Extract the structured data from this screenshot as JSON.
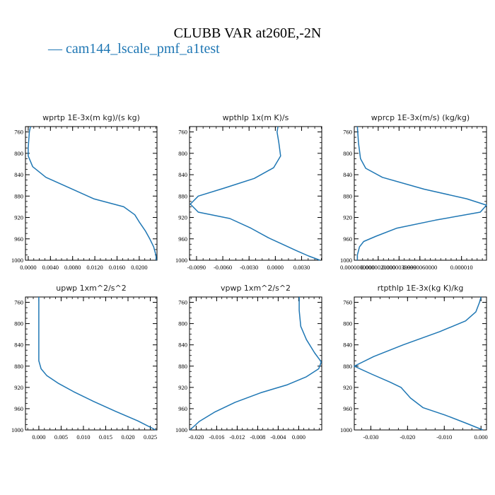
{
  "title": "CLUBB VAR at260E,-2N",
  "legend_label": "— cam144_lscale_pmf_a1test",
  "colors": {
    "series": "#1f77b4",
    "axes": "#000000"
  },
  "chart_data": [
    {
      "type": "line",
      "title": "wprtp  1E-3x(m kg)/(s kg)",
      "series_name": "cam144_lscale_pmf_a1test",
      "xlim": [
        -0.0005,
        0.0232
      ],
      "xticks": [
        0.0,
        0.004,
        0.008,
        0.012,
        0.016,
        0.02
      ],
      "xtick_labels": [
        "0.0000",
        "0.0040",
        "0.0080",
        "0.0120",
        "0.0160",
        "0.0200"
      ],
      "ylim": [
        1000,
        750
      ],
      "yticks": [
        760,
        800,
        840,
        880,
        920,
        960,
        1000
      ],
      "y": [
        750,
        760,
        775,
        790,
        805,
        825,
        845,
        865,
        885,
        900,
        915,
        930,
        945,
        960,
        975,
        990,
        1000
      ],
      "x": [
        0.0004,
        0.0002,
        0.0001,
        0.0,
        0.0,
        0.0008,
        0.0032,
        0.0075,
        0.0118,
        0.0172,
        0.0192,
        0.0201,
        0.0211,
        0.0219,
        0.0226,
        0.023,
        0.0231
      ]
    },
    {
      "type": "line",
      "title": "wpthlp  1x(m K)/s",
      "series_name": "cam144_lscale_pmf_a1test",
      "xlim": [
        -0.0098,
        0.0053
      ],
      "xticks": [
        -0.009,
        -0.006,
        -0.003,
        0.0,
        0.003
      ],
      "xtick_labels": [
        "-0.0090",
        "-0.0060",
        "-0.0030",
        "0.0000",
        "0.0030"
      ],
      "ylim": [
        1000,
        750
      ],
      "yticks": [
        760,
        800,
        840,
        880,
        920,
        960,
        1000
      ],
      "y": [
        750,
        760,
        780,
        805,
        827,
        847,
        865,
        880,
        895,
        910,
        922,
        940,
        958,
        970,
        982,
        992,
        1000
      ],
      "x": [
        0.0003,
        0.0002,
        0.0004,
        0.0006,
        -0.0002,
        -0.0024,
        -0.0058,
        -0.0088,
        -0.0097,
        -0.0088,
        -0.0052,
        -0.0028,
        -0.0008,
        0.0008,
        0.0024,
        0.0038,
        0.0051
      ]
    },
    {
      "type": "line",
      "title": "wprcp  1E-3x(m/s) (kg/kg)",
      "series_name": "cam144_lscale_pmf_a1test",
      "xlim": [
        -3e-07,
        1.24e-05
      ],
      "xticks": [
        0.0,
        2e-06,
        4e-06,
        6e-06,
        1e-05
      ],
      "xtick_labels": [
        "0.0000000000",
        "0.0000020000",
        "0.0000039999",
        "0.0000060000",
        "0.000010"
      ],
      "ylim": [
        1000,
        750
      ],
      "yticks": [
        760,
        800,
        840,
        880,
        920,
        960,
        1000
      ],
      "y": [
        750,
        780,
        810,
        828,
        845,
        867,
        885,
        897,
        910,
        925,
        940,
        955,
        965,
        975,
        990,
        1000
      ],
      "x": [
        0.0,
        1e-07,
        3e-07,
        8e-07,
        2.4e-06,
        6.4e-06,
        1.05e-05,
        1.24e-05,
        1.18e-05,
        7.5e-06,
        3.8e-06,
        1.8e-06,
        6e-07,
        2e-07,
        0.0,
        0.0
      ]
    },
    {
      "type": "line",
      "title": "upwp  1xm^2/s^2",
      "series_name": "cam144_lscale_pmf_a1test",
      "xlim": [
        -0.003,
        0.0265
      ],
      "xticks": [
        0.0,
        0.005,
        0.01,
        0.015,
        0.02,
        0.025
      ],
      "xtick_labels": [
        "0.000",
        "0.005",
        "0.010",
        "0.015",
        "0.020",
        "0.025"
      ],
      "ylim": [
        1000,
        750
      ],
      "yticks": [
        760,
        800,
        840,
        880,
        920,
        960,
        1000
      ],
      "y": [
        750,
        780,
        810,
        840,
        870,
        885,
        898,
        912,
        928,
        946,
        965,
        983,
        1000
      ],
      "x": [
        0.0,
        0.0,
        0.0,
        0.0,
        0.0,
        0.0005,
        0.0018,
        0.0043,
        0.0078,
        0.0122,
        0.0172,
        0.0222,
        0.0262
      ]
    },
    {
      "type": "line",
      "title": "vpwp  1xm^2/s^2",
      "series_name": "cam144_lscale_pmf_a1test",
      "xlim": [
        -0.0213,
        0.0045
      ],
      "xticks": [
        -0.02,
        -0.016,
        -0.012,
        -0.008,
        -0.004,
        0.0
      ],
      "xtick_labels": [
        "-0.020",
        "-0.016",
        "-0.012",
        "-0.008",
        "-0.004",
        "0.000"
      ],
      "ylim": [
        1000,
        750
      ],
      "yticks": [
        760,
        800,
        840,
        880,
        920,
        960,
        1000
      ],
      "y": [
        750,
        775,
        805,
        830,
        855,
        872,
        885,
        900,
        915,
        930,
        948,
        966,
        984,
        1000
      ],
      "x": [
        0.0001,
        0.0001,
        0.0004,
        0.0015,
        0.0031,
        0.0044,
        0.0039,
        0.0015,
        -0.0022,
        -0.0074,
        -0.0124,
        -0.0163,
        -0.0194,
        -0.0212
      ]
    },
    {
      "type": "line",
      "title": "rtpthlp  1E-3x(kg K)/kg",
      "series_name": "cam144_lscale_pmf_a1test",
      "xlim": [
        -0.0345,
        0.0015
      ],
      "xticks": [
        -0.03,
        -0.02,
        -0.01,
        0.0
      ],
      "xtick_labels": [
        "-0.030",
        "-0.020",
        "-0.010",
        "0.000"
      ],
      "ylim": [
        1000,
        750
      ],
      "yticks": [
        760,
        800,
        840,
        880,
        920,
        960,
        1000
      ],
      "y": [
        750,
        760,
        778,
        795,
        815,
        840,
        862,
        880,
        895,
        910,
        920,
        940,
        958,
        972,
        988,
        1000
      ],
      "x": [
        0.0,
        -0.0004,
        -0.0014,
        -0.0042,
        -0.0112,
        -0.0212,
        -0.0292,
        -0.0345,
        -0.0298,
        -0.0248,
        -0.0218,
        -0.0192,
        -0.0158,
        -0.0098,
        -0.0038,
        0.0005
      ]
    }
  ]
}
